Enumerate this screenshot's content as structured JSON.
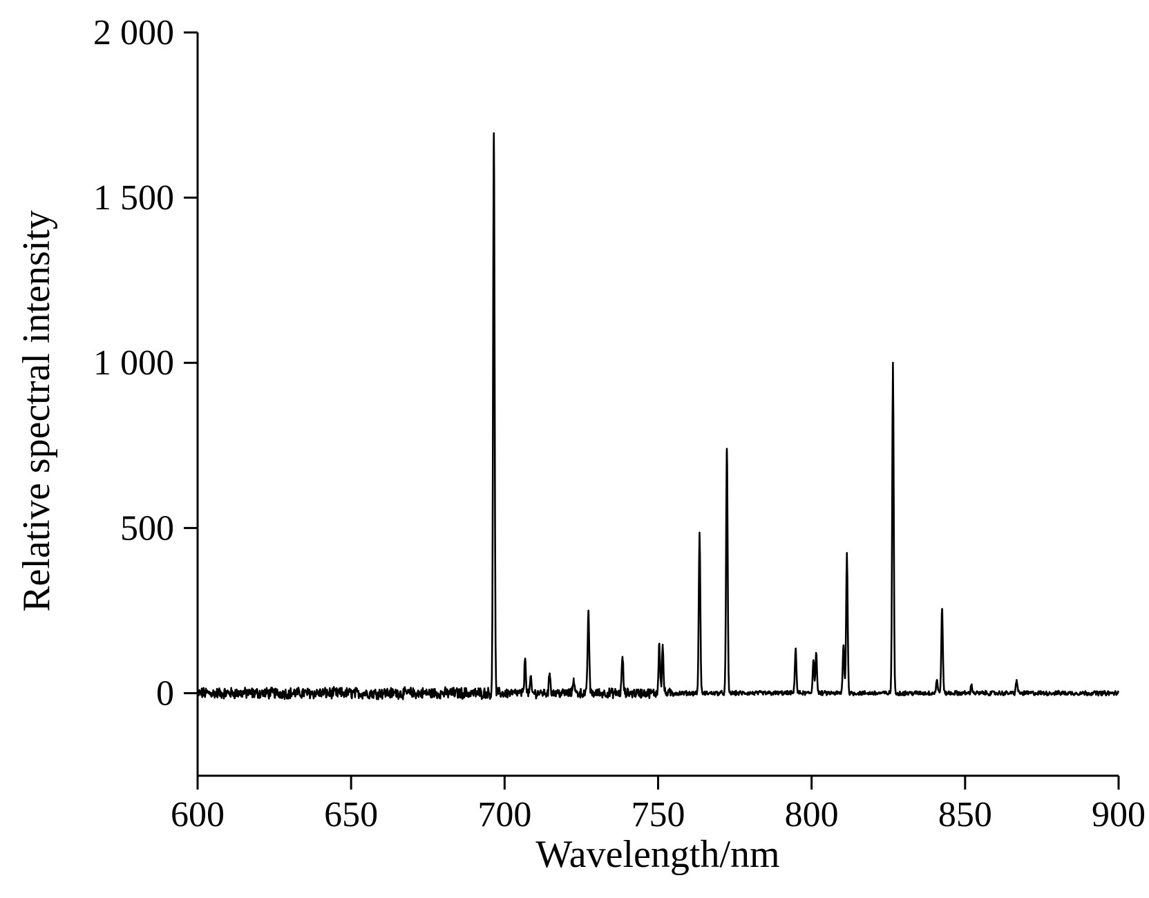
{
  "chart_data": {
    "type": "line",
    "title": "",
    "xlabel": "Wavelength/nm",
    "ylabel": "Relative spectral intensity",
    "xlim": [
      600,
      900
    ],
    "ylim": [
      -250,
      2000
    ],
    "xticks": [
      600,
      650,
      700,
      750,
      800,
      850,
      900
    ],
    "xtick_labels": [
      "600",
      "650",
      "700",
      "750",
      "800",
      "850",
      "900"
    ],
    "yticks": [
      0,
      500,
      1000,
      1500,
      2000
    ],
    "ytick_labels": [
      "0",
      "500",
      "1 000",
      "1 500",
      "2 000"
    ],
    "grid": false,
    "legend": "none",
    "line_color": "#000000",
    "series": [
      {
        "noise_amplitude_before_700nm": 15,
        "noise_amplitude_after_755nm": 6,
        "peaks": [
          {
            "x": 696.5,
            "y": 1695
          },
          {
            "x": 706.7,
            "y": 105
          },
          {
            "x": 708.5,
            "y": 40
          },
          {
            "x": 714.7,
            "y": 60
          },
          {
            "x": 722.5,
            "y": 45
          },
          {
            "x": 727.3,
            "y": 250
          },
          {
            "x": 738.4,
            "y": 110
          },
          {
            "x": 750.4,
            "y": 150
          },
          {
            "x": 751.5,
            "y": 140
          },
          {
            "x": 763.5,
            "y": 485
          },
          {
            "x": 772.4,
            "y": 740
          },
          {
            "x": 794.8,
            "y": 135
          },
          {
            "x": 800.6,
            "y": 100
          },
          {
            "x": 801.5,
            "y": 120
          },
          {
            "x": 810.4,
            "y": 145
          },
          {
            "x": 811.5,
            "y": 420
          },
          {
            "x": 826.5,
            "y": 995
          },
          {
            "x": 840.8,
            "y": 40
          },
          {
            "x": 842.5,
            "y": 255
          },
          {
            "x": 852.1,
            "y": 25
          },
          {
            "x": 866.8,
            "y": 40
          }
        ]
      }
    ]
  }
}
